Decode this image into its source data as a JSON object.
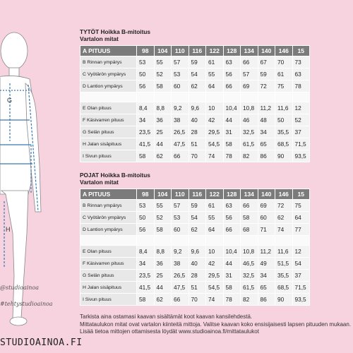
{
  "colors": {
    "background": "#f7d3e0",
    "header_bg": "#7b7b7b",
    "label_bg": "#e8e8e8",
    "cell_bg": "#f3f3f3",
    "figure_line": "#3a78b0",
    "figure_fill": "#ffffff"
  },
  "figure": {
    "letters": {
      "g": "G",
      "h": "H"
    },
    "handles": [
      "@studioainoa",
      "#tehtystudioainoa"
    ],
    "brand": "STUDIOAINOA.FI"
  },
  "tytot": {
    "title": "TYTÖT Hoikka B-mitoitus",
    "subtitle": "Vartalon mitat",
    "header_label": "A PITUUS",
    "sizes": [
      "98",
      "104",
      "110",
      "116",
      "122",
      "128",
      "134",
      "140",
      "146",
      "15"
    ],
    "rows": [
      {
        "label": "B Rinnan ympärys",
        "values": [
          "53",
          "55",
          "57",
          "59",
          "61",
          "63",
          "66",
          "67",
          "70",
          "73"
        ]
      },
      {
        "label": "C Vyötärön ympärys",
        "values": [
          "50",
          "52",
          "53",
          "54",
          "55",
          "56",
          "57",
          "59",
          "61",
          "63"
        ]
      },
      {
        "label": "D Lantion ympärys",
        "values": [
          "56",
          "58",
          "60",
          "62",
          "64",
          "66",
          "69",
          "72",
          "75",
          "78"
        ]
      },
      {
        "label": "",
        "values": [
          "",
          "",
          "",
          "",
          "",
          "",
          "",
          "",
          "",
          ""
        ]
      },
      {
        "label": "E Olan pituus",
        "values": [
          "8,4",
          "8,8",
          "9,2",
          "9,6",
          "10",
          "10,4",
          "10,8",
          "11,2",
          "11,6",
          "12"
        ]
      },
      {
        "label": "F Käsivarren pituus",
        "values": [
          "34",
          "36",
          "38",
          "40",
          "42",
          "44",
          "46",
          "48",
          "50",
          "52"
        ]
      },
      {
        "label": "G Selän pituus",
        "values": [
          "23,5",
          "25",
          "26,5",
          "28",
          "29,5",
          "31",
          "32,5",
          "34",
          "35,5",
          "37"
        ]
      },
      {
        "label": "H Jalan sisäpituus",
        "values": [
          "41,5",
          "44",
          "47,5",
          "51",
          "54,5",
          "58",
          "61,5",
          "65",
          "68,5",
          "71,5"
        ]
      },
      {
        "label": "I Sivun pituus",
        "values": [
          "58",
          "62",
          "66",
          "70",
          "74",
          "78",
          "82",
          "86",
          "90",
          "93,5"
        ]
      }
    ]
  },
  "pojat": {
    "title": "POJAT Hoikka B-mitoitus",
    "subtitle": "Vartalon mitat",
    "header_label": "A PITUUS",
    "sizes": [
      "98",
      "104",
      "110",
      "116",
      "122",
      "128",
      "134",
      "140",
      "146",
      "15"
    ],
    "rows": [
      {
        "label": "B Rinnan ympärys",
        "values": [
          "53",
          "55",
          "57",
          "59",
          "61",
          "63",
          "66",
          "69",
          "72",
          "75"
        ]
      },
      {
        "label": "C Vyötärön ympärys",
        "values": [
          "50",
          "52",
          "53",
          "54",
          "55",
          "56",
          "58",
          "60",
          "62",
          "64"
        ]
      },
      {
        "label": "D Lantion ympärys",
        "values": [
          "56",
          "58",
          "60",
          "62",
          "64",
          "66",
          "68",
          "71",
          "74",
          "77"
        ]
      },
      {
        "label": "",
        "values": [
          "",
          "",
          "",
          "",
          "",
          "",
          "",
          "",
          "",
          ""
        ]
      },
      {
        "label": "E Olan pituus",
        "values": [
          "8,4",
          "8,8",
          "9,2",
          "9,6",
          "10",
          "10,4",
          "10,8",
          "11,2",
          "11,6",
          "12"
        ]
      },
      {
        "label": "F Käsivarren pituus",
        "values": [
          "34",
          "36",
          "38",
          "40",
          "42",
          "44",
          "46,5",
          "49",
          "51,5",
          "54"
        ]
      },
      {
        "label": "G Selän pituus",
        "values": [
          "23,5",
          "25",
          "26,5",
          "28",
          "29,5",
          "31",
          "32,5",
          "34",
          "35,5",
          "37"
        ]
      },
      {
        "label": "H Jalan sisäpituus",
        "values": [
          "41,5",
          "44",
          "47,5",
          "51",
          "54,5",
          "58",
          "61,5",
          "65",
          "68,5",
          "71,5"
        ]
      },
      {
        "label": "I Sivun pituus",
        "values": [
          "58",
          "62",
          "66",
          "70",
          "74",
          "78",
          "82",
          "86",
          "90",
          "93,5"
        ]
      }
    ]
  },
  "footer": {
    "line1": "Tarkista aina ostamasi kaavan sisältämät koot kaavan kansilehdestä.",
    "line2": "Mittataulukon mitat ovat vartalon kiinteitä mittoja. Valitse kaavan koko ensisijaisesti lapsen pituuden mukaan.",
    "line3": "Lisää tietoa mittojen ottamisesta löydät www.studioainoa.fi/mittataulukot"
  }
}
